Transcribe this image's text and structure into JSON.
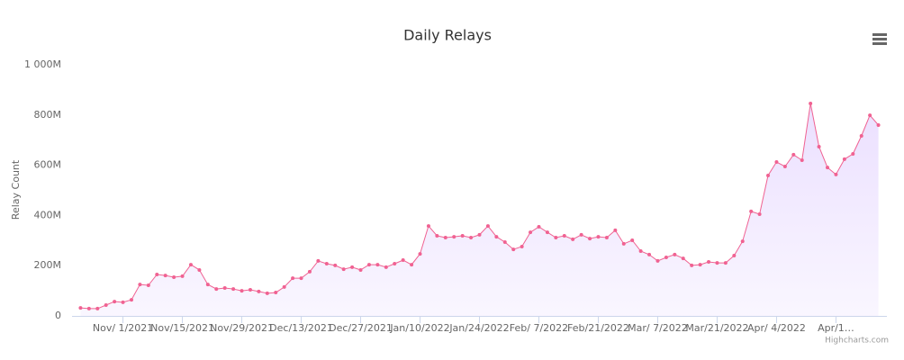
{
  "chart_data": {
    "type": "area",
    "title": "Daily Relays",
    "y_label": "Relay Count",
    "credit": "Highcharts.com",
    "color": "#f06292",
    "fill_color": "#e9dcff",
    "grid": false,
    "x": [
      "2021-10-22",
      "2021-10-24",
      "2021-10-26",
      "2021-10-28",
      "2021-10-30",
      "2021-11-01",
      "2021-11-03",
      "2021-11-05",
      "2021-11-07",
      "2021-11-09",
      "2021-11-11",
      "2021-11-13",
      "2021-11-15",
      "2021-11-17",
      "2021-11-19",
      "2021-11-21",
      "2021-11-23",
      "2021-11-25",
      "2021-11-27",
      "2021-11-29",
      "2021-12-01",
      "2021-12-03",
      "2021-12-05",
      "2021-12-07",
      "2021-12-09",
      "2021-12-11",
      "2021-12-13",
      "2021-12-15",
      "2021-12-17",
      "2021-12-19",
      "2021-12-21",
      "2021-12-23",
      "2021-12-25",
      "2021-12-27",
      "2021-12-29",
      "2021-12-31",
      "2022-01-02",
      "2022-01-04",
      "2022-01-06",
      "2022-01-08",
      "2022-01-10",
      "2022-01-12",
      "2022-01-14",
      "2022-01-16",
      "2022-01-18",
      "2022-01-20",
      "2022-01-22",
      "2022-01-24",
      "2022-01-26",
      "2022-01-28",
      "2022-01-30",
      "2022-02-01",
      "2022-02-03",
      "2022-02-05",
      "2022-02-07",
      "2022-02-09",
      "2022-02-11",
      "2022-02-13",
      "2022-02-15",
      "2022-02-17",
      "2022-02-19",
      "2022-02-21",
      "2022-02-23",
      "2022-02-25",
      "2022-02-27",
      "2022-03-01",
      "2022-03-03",
      "2022-03-05",
      "2022-03-07",
      "2022-03-09",
      "2022-03-11",
      "2022-03-13",
      "2022-03-15",
      "2022-03-17",
      "2022-03-19",
      "2022-03-21",
      "2022-03-23",
      "2022-03-25",
      "2022-03-27",
      "2022-03-29",
      "2022-03-31",
      "2022-04-02",
      "2022-04-04",
      "2022-04-06",
      "2022-04-08",
      "2022-04-10",
      "2022-04-12",
      "2022-04-14",
      "2022-04-16",
      "2022-04-18",
      "2022-04-20",
      "2022-04-22",
      "2022-04-24",
      "2022-04-26",
      "2022-04-28"
    ],
    "values": [
      32,
      29,
      29,
      43,
      57,
      54,
      64,
      125,
      122,
      165,
      161,
      154,
      158,
      204,
      183,
      125,
      107,
      111,
      107,
      100,
      104,
      97,
      90,
      93,
      115,
      150,
      150,
      176,
      219,
      208,
      201,
      186,
      194,
      183,
      204,
      204,
      194,
      208,
      222,
      204,
      247,
      358,
      319,
      312,
      315,
      319,
      312,
      323,
      358,
      315,
      294,
      265,
      276,
      333,
      355,
      333,
      312,
      319,
      305,
      323,
      308,
      315,
      312,
      341,
      287,
      301,
      258,
      244,
      219,
      233,
      244,
      229,
      201,
      204,
      215,
      211,
      211,
      240,
      297,
      416,
      405,
      559,
      613,
      595,
      642,
      620,
      846,
      674,
      591,
      563,
      624,
      645,
      717,
      799,
      760
    ],
    "xlim": [
      "2021-10-20",
      "2022-04-30"
    ],
    "xticks": [
      {
        "value": "2021-11-01",
        "label": "Nov/ 1/2021"
      },
      {
        "value": "2021-11-15",
        "label": "Nov/15/2021"
      },
      {
        "value": "2021-11-29",
        "label": "Nov/29/2021"
      },
      {
        "value": "2021-12-13",
        "label": "Dec/13/2021"
      },
      {
        "value": "2021-12-27",
        "label": "Dec/27/2021"
      },
      {
        "value": "2022-01-10",
        "label": "Jan/10/2022"
      },
      {
        "value": "2022-01-24",
        "label": "Jan/24/2022"
      },
      {
        "value": "2022-02-07",
        "label": "Feb/ 7/2022"
      },
      {
        "value": "2022-02-21",
        "label": "Feb/21/2022"
      },
      {
        "value": "2022-03-07",
        "label": "Mar/ 7/2022"
      },
      {
        "value": "2022-03-21",
        "label": "Mar/21/2022"
      },
      {
        "value": "2022-04-04",
        "label": "Apr/ 4/2022"
      },
      {
        "value": "2022-04-18",
        "label": "Apr/1…"
      }
    ],
    "ylim": [
      0,
      1000
    ],
    "yticks": [
      0,
      {
        "value": 200,
        "label": "200M"
      },
      {
        "value": 400,
        "label": "400M"
      },
      {
        "value": 600,
        "label": "600M"
      },
      {
        "value": 800,
        "label": "800M"
      },
      {
        "value": 1000,
        "label": "1 000M"
      }
    ]
  }
}
